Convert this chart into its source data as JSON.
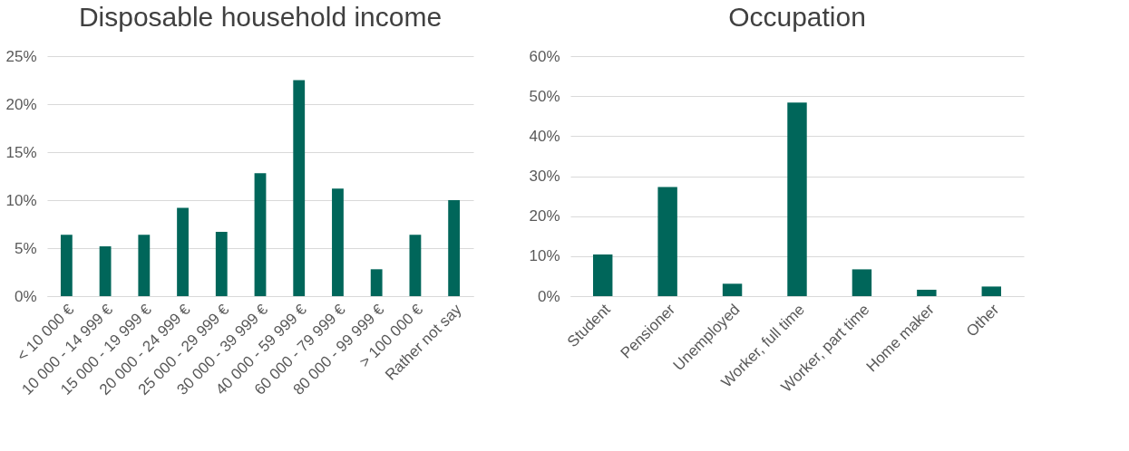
{
  "chart_data": [
    {
      "type": "bar",
      "title": "Disposable household income",
      "categories": [
        "< 10 000 €",
        "10 000 - 14 999 €",
        "15 000 - 19 999 €",
        "20 000 - 24 999 €",
        "25 000 - 29 999 €",
        "30 000 - 39 999 €",
        "40 000 - 59 999 €",
        "60 000 - 79 999 €",
        "80 000 - 99 999 €",
        "> 100 000  €",
        "Rather not say"
      ],
      "values": [
        6.4,
        5.2,
        6.4,
        9.2,
        6.7,
        12.8,
        22.5,
        11.2,
        2.8,
        6.4,
        10.0
      ],
      "color": "#00665a",
      "ylim": [
        0,
        25
      ],
      "yticks": [
        {
          "value": 0,
          "label": "0%"
        },
        {
          "value": 5,
          "label": "5%"
        },
        {
          "value": 10,
          "label": "10%"
        },
        {
          "value": 15,
          "label": "15%"
        },
        {
          "value": 20,
          "label": "20%"
        },
        {
          "value": 25,
          "label": "25%"
        }
      ],
      "grid": "y"
    },
    {
      "type": "bar",
      "title": "Occupation",
      "categories": [
        "Student",
        "Pensioner",
        "Unemployed",
        "Worker, full time",
        "Worker, part time",
        "Home maker",
        "Other"
      ],
      "values": [
        10.4,
        27.3,
        3.1,
        48.4,
        6.7,
        1.6,
        2.4
      ],
      "color": "#00665a",
      "ylim": [
        0,
        60
      ],
      "yticks": [
        {
          "value": 0,
          "label": "0%"
        },
        {
          "value": 10,
          "label": "10%"
        },
        {
          "value": 20,
          "label": "20%"
        },
        {
          "value": 30,
          "label": "30%"
        },
        {
          "value": 40,
          "label": "40%"
        },
        {
          "value": 50,
          "label": "50%"
        },
        {
          "value": 60,
          "label": "60%"
        }
      ],
      "grid": "y"
    }
  ]
}
